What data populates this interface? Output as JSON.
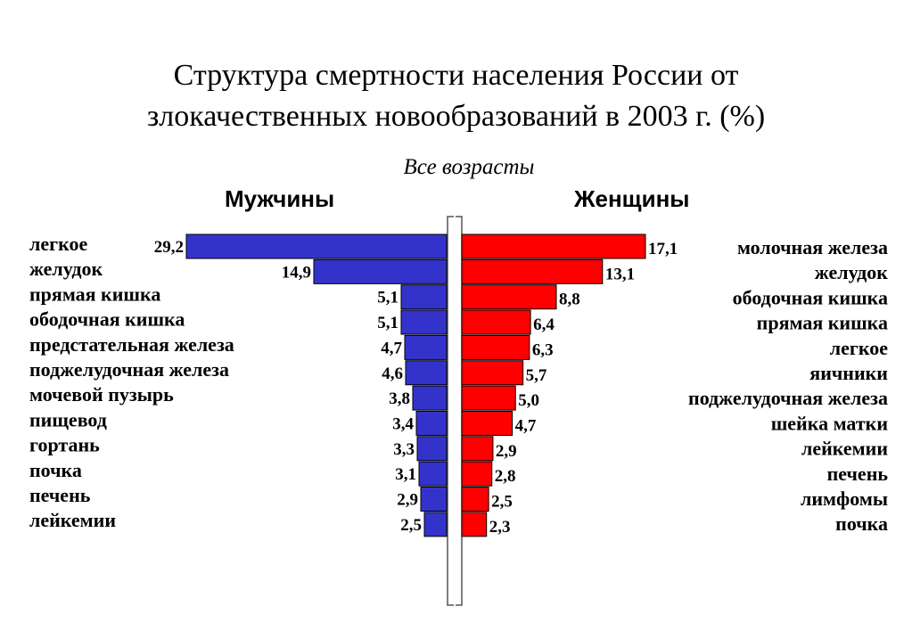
{
  "title_line1": "Структура смертности населения России от",
  "title_line2": "злокачественных новообразований в 2003 г. (%)",
  "subtitle": "Все возрасты",
  "colors": {
    "men": "#3333cc",
    "women": "#ff0000"
  },
  "chart_data": {
    "type": "bar",
    "orientation": "horizontal",
    "layout": "back-to-back",
    "title": "Структура смертности населения России от злокачественных новообразований в 2003 г. (%)",
    "subtitle": "Все возрасты",
    "series": [
      {
        "name": "Мужчины",
        "color": "#3333cc",
        "categories": [
          "легкое",
          "желудок",
          "прямая кишка",
          "ободочная кишка",
          "предстательная железа",
          "поджелудочная железа",
          "мочевой пузырь",
          "пищевод",
          "гортань",
          "почка",
          "печень",
          "лейкемии"
        ],
        "values": [
          29.2,
          14.9,
          5.1,
          5.1,
          4.7,
          4.6,
          3.8,
          3.4,
          3.3,
          3.1,
          2.9,
          2.5
        ],
        "labels": [
          "29,2",
          "14,9",
          "5,1",
          "5,1",
          "4,7",
          "4,6",
          "3,8",
          "3,4",
          "3,3",
          "3,1",
          "2,9",
          "2,5"
        ]
      },
      {
        "name": "Женщины",
        "color": "#ff0000",
        "categories": [
          "молочная железа",
          "желудок",
          "ободочная кишка",
          "прямая кишка",
          "легкое",
          "яичники",
          "поджелудочная железа",
          "шейка матки",
          "лейкемии",
          "печень",
          "лимфомы",
          "почка"
        ],
        "values": [
          17.1,
          13.1,
          8.8,
          6.4,
          6.3,
          5.7,
          5.0,
          4.7,
          2.9,
          2.8,
          2.5,
          2.3
        ],
        "labels": [
          "17,1",
          "13,1",
          "8,8",
          "6,4",
          "6,3",
          "5,7",
          "5,0",
          "4,7",
          "2,9",
          "2,8",
          "2,5",
          "2,3"
        ]
      }
    ]
  }
}
